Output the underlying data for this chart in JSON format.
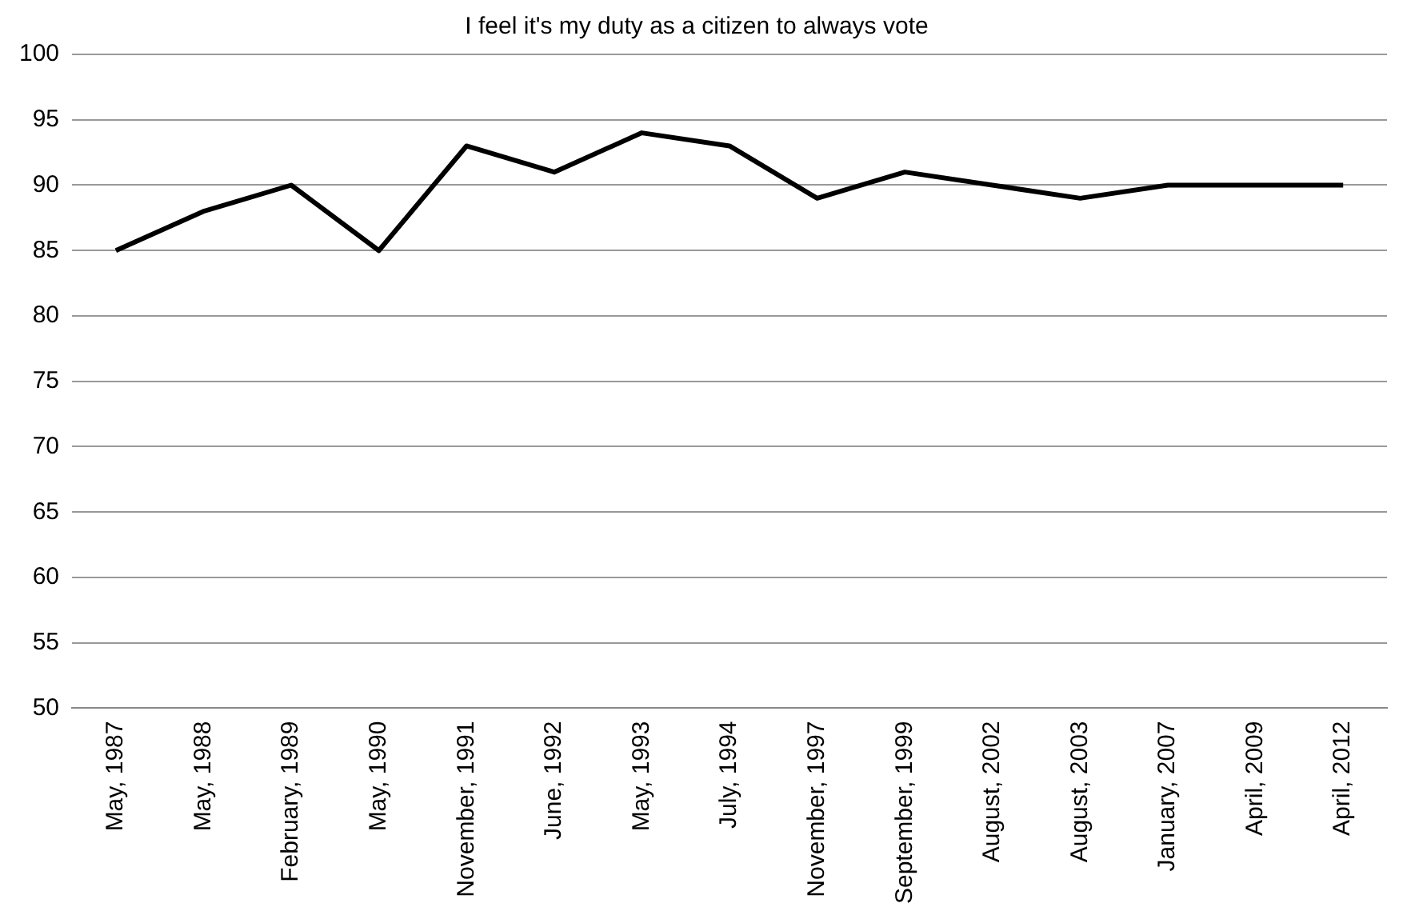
{
  "chart_data": {
    "type": "line",
    "title": "I feel it's my duty as a citizen to always vote",
    "categories": [
      "May, 1987",
      "May, 1988",
      "February, 1989",
      "May, 1990",
      "November, 1991",
      "June, 1992",
      "May, 1993",
      "July, 1994",
      "November, 1997",
      "September, 1999",
      "August, 2002",
      "August, 2003",
      "January, 2007",
      "April, 2009",
      "April, 2012"
    ],
    "series": [
      {
        "color": "#000000",
        "values": [
          85,
          88,
          90,
          85,
          93,
          91,
          94,
          93,
          89,
          91,
          90,
          89,
          90,
          90,
          90
        ]
      }
    ],
    "ylim": [
      50,
      100
    ],
    "yticks": [
      50,
      55,
      60,
      65,
      70,
      75,
      80,
      85,
      90,
      95,
      100
    ],
    "grid": "y",
    "legend": false,
    "marker": "none",
    "line_style": "solid"
  }
}
